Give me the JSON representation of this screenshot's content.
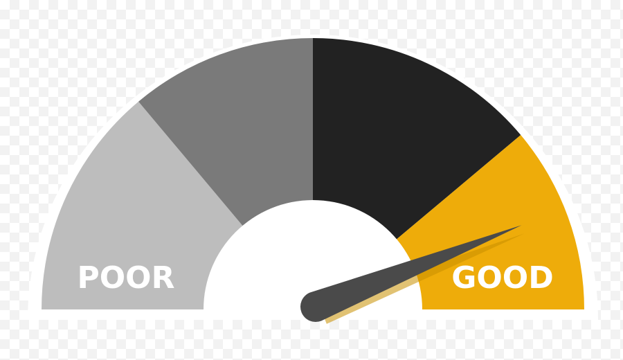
{
  "gauge": {
    "labels": {
      "low": "POOR",
      "high": "GOOD"
    },
    "segments": [
      {
        "name": "segment-light-gray",
        "color": "#bdbdbd"
      },
      {
        "name": "segment-mid-gray",
        "color": "#7a7a7a"
      },
      {
        "name": "segment-black",
        "color": "#222222"
      },
      {
        "name": "segment-yellow",
        "color": "#eeac0a"
      }
    ],
    "needle": {
      "color": "#4a4a4a",
      "shadow_color": "#c98f00",
      "level": 0.88
    },
    "frame_color": "#ffffff",
    "hub_color": "#ffffff"
  }
}
